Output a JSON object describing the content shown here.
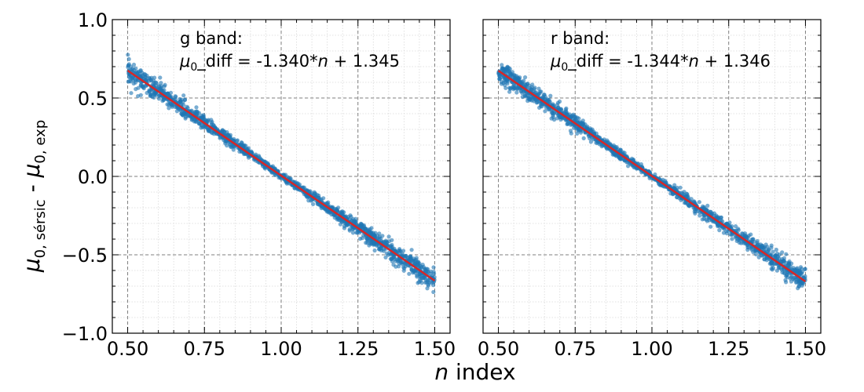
{
  "figure": {
    "xlabel_var": "n",
    "xlabel_rest": " index",
    "ylabel_main": "μ",
    "ylabel_sub1": "0, sérsic",
    "ylabel_mid": " - ",
    "ylabel_sub2": "0, exp"
  },
  "chart_data": [
    {
      "type": "scatter",
      "panel": "left",
      "annotation": {
        "line1": "g band:",
        "mu": "μ",
        "sub": "0",
        "part_a": "_diff = -1.340*",
        "var": "n",
        "part_b": " + 1.345"
      },
      "fit": {
        "slope": -1.34,
        "intercept": 1.345
      },
      "x_range": [
        0.5,
        1.5
      ],
      "scatter_band": {
        "near_ends": 0.05,
        "near_center": 0.012
      },
      "xlim": [
        0.45,
        1.55
      ],
      "ylim": [
        -1.0,
        1.0
      ],
      "xticks": [
        "0.50",
        "0.75",
        "1.00",
        "1.25",
        "1.50"
      ],
      "yticks": [
        "−1.0",
        "−0.5",
        "0.0",
        "0.5",
        "1.0"
      ],
      "grid": true,
      "colors": {
        "points": "#1f77b4",
        "fit_line": "#d62728"
      }
    },
    {
      "type": "scatter",
      "panel": "right",
      "annotation": {
        "line1": "r band:",
        "mu": "μ",
        "sub": "0",
        "part_a": "_diff = -1.344*",
        "var": "n",
        "part_b": " + 1.346"
      },
      "fit": {
        "slope": -1.344,
        "intercept": 1.346
      },
      "x_range": [
        0.5,
        1.5
      ],
      "scatter_band": {
        "near_ends": 0.05,
        "near_center": 0.012
      },
      "xlim": [
        0.45,
        1.55
      ],
      "ylim": [
        -1.0,
        1.0
      ],
      "xticks": [
        "0.50",
        "0.75",
        "1.00",
        "1.25",
        "1.50"
      ],
      "yticks": [],
      "grid": true,
      "colors": {
        "points": "#1f77b4",
        "fit_line": "#d62728"
      }
    }
  ]
}
